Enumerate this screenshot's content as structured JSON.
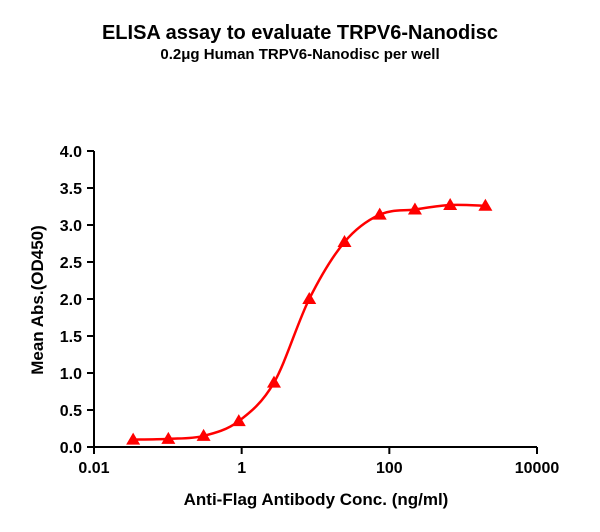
{
  "chart_data": {
    "type": "scatter",
    "title": "ELISA assay to evaluate TRPV6-Nanodisc",
    "subtitle": "0.2μg Human TRPV6-Nanodisc per well",
    "xlabel": "Anti-Flag Antibody Conc. (ng/ml)",
    "ylabel": "Mean Abs.(OD450)",
    "xscale": "log",
    "xlim": [
      0.01,
      10000
    ],
    "ylim": [
      0,
      4.0
    ],
    "xticks": [
      "0.01",
      "1",
      "100",
      "10000"
    ],
    "xtick_values": [
      0.01,
      1,
      100,
      10000
    ],
    "yticks": [
      "0.0",
      "0.5",
      "1.0",
      "1.5",
      "2.0",
      "2.5",
      "3.0",
      "3.5",
      "4.0"
    ],
    "ytick_values": [
      0,
      0.5,
      1.0,
      1.5,
      2.0,
      2.5,
      3.0,
      3.5,
      4.0
    ],
    "grid": false,
    "series": [
      {
        "color": "#ff0000",
        "marker": "triangle",
        "fit_curve": true,
        "x": [
          0.0339,
          0.1016,
          0.305,
          0.914,
          2.74,
          8.23,
          24.7,
          74.1,
          222.2,
          666.7,
          2000
        ],
        "y": [
          0.1,
          0.11,
          0.15,
          0.35,
          0.87,
          2.0,
          2.77,
          3.14,
          3.21,
          3.27,
          3.26
        ]
      }
    ]
  }
}
